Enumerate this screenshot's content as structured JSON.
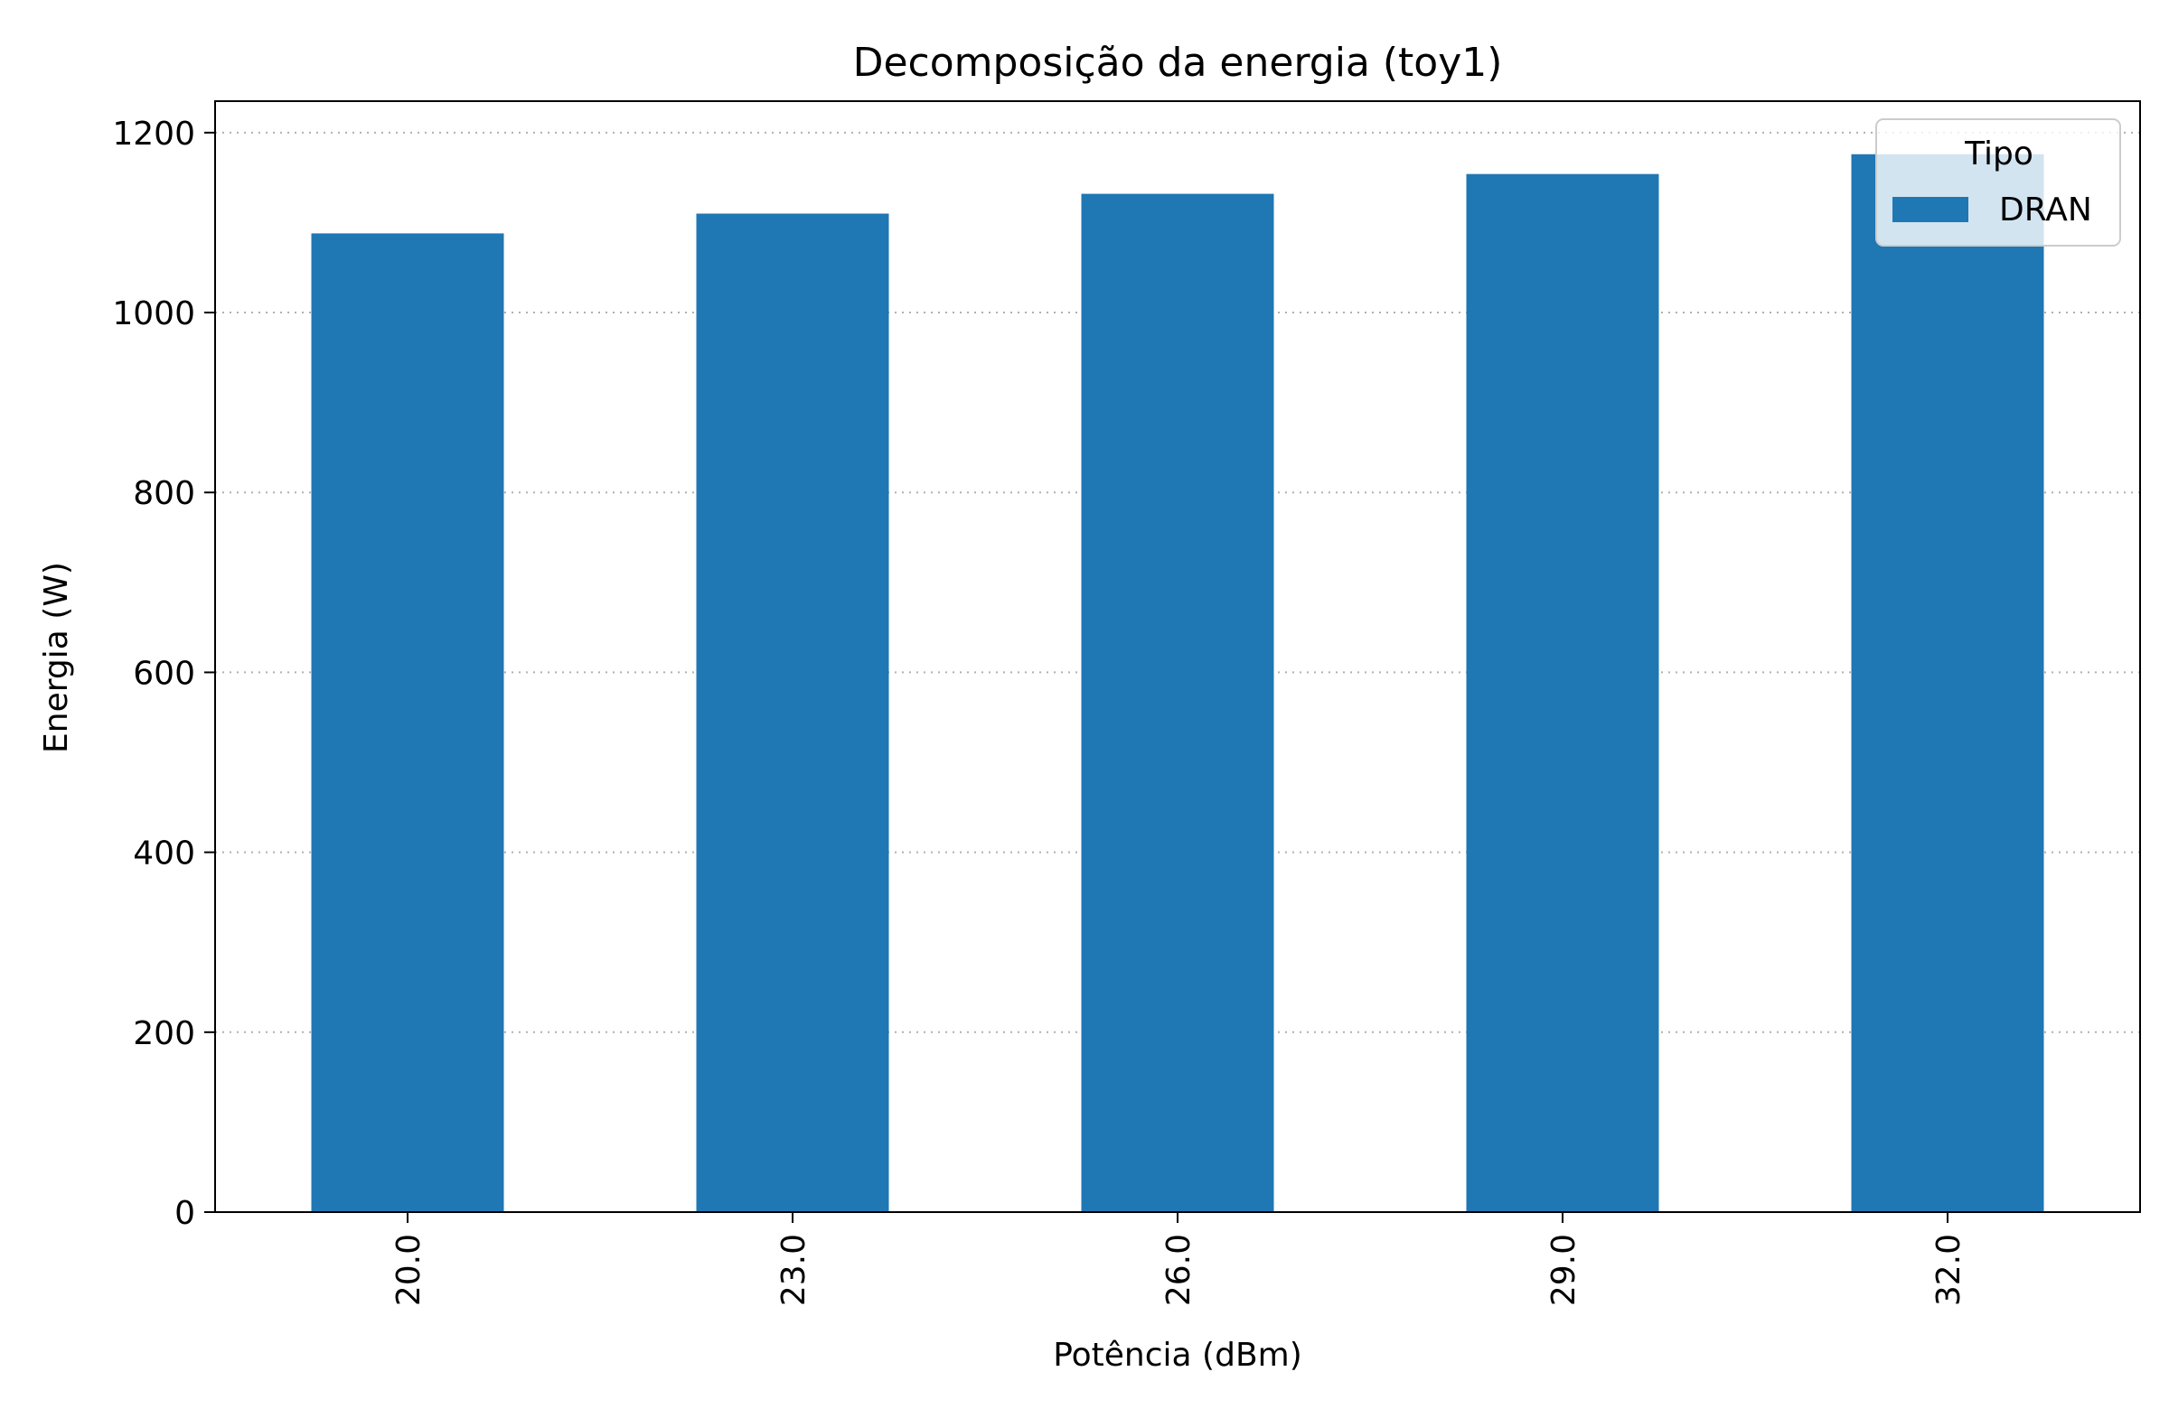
{
  "chart_data": {
    "type": "bar",
    "title": "Decomposição da energia (toy1)",
    "xlabel": "Potência (dBm)",
    "ylabel": "Energia (W)",
    "categories": [
      "20.0",
      "23.0",
      "26.0",
      "29.0",
      "32.0"
    ],
    "series": [
      {
        "name": "DRAN",
        "values": [
          1088,
          1110,
          1132,
          1154,
          1176
        ],
        "color": "#1f77b4"
      }
    ],
    "ylim": [
      0,
      1235
    ],
    "yticks": [
      0,
      200,
      400,
      600,
      800,
      1000,
      1200
    ],
    "grid": "y-dotted",
    "legend": {
      "title": "Tipo",
      "placement": "top-right"
    },
    "bar_color": "#1f77b4"
  }
}
